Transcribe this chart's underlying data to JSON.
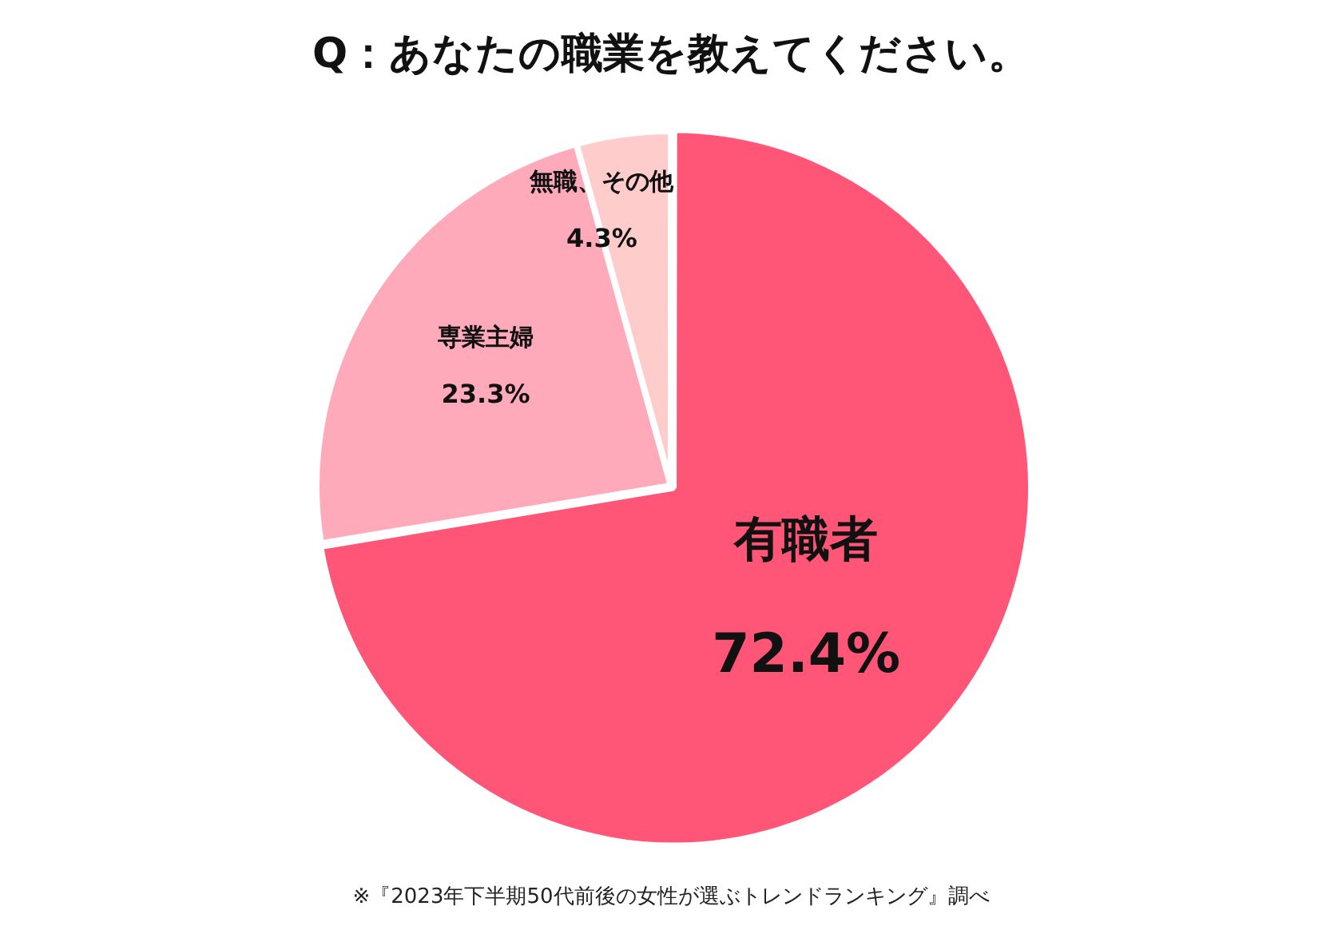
{
  "chart_data": {
    "type": "pie",
    "title": "Q：あなたの職業を教えてください。",
    "categories": [
      "有職者",
      "専業主婦",
      "無職、その他"
    ],
    "values": [
      72.4,
      23.3,
      4.3
    ],
    "value_labels": [
      "72.4%",
      "23.3%",
      "4.3%"
    ],
    "colors": [
      "#ff5577",
      "#ffaabb",
      "#ffcccc"
    ],
    "annotations": [
      "※『2023年下半期50代前後の女性が選ぶトレンドランキング』調べ"
    ],
    "legend": false
  }
}
